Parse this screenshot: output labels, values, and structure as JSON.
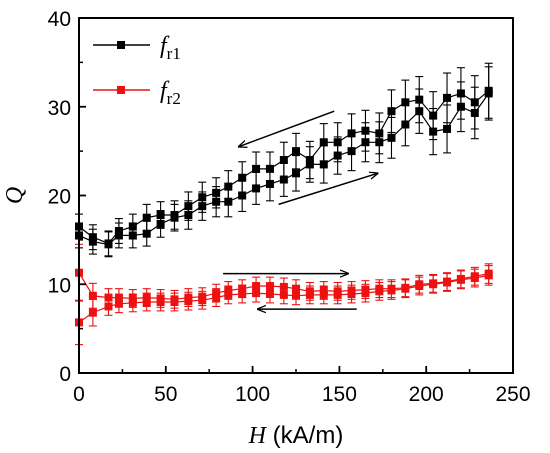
{
  "chart_data": {
    "type": "scatter",
    "xlabel_var": "H",
    "xlabel_unit": " (kA/m)",
    "ylabel": "Q",
    "xlim": [
      0,
      250
    ],
    "ylim": [
      0,
      40
    ],
    "xticks": [
      0,
      50,
      100,
      150,
      200,
      250
    ],
    "yticks": [
      0,
      10,
      20,
      30,
      40
    ],
    "legend_position": "top-left",
    "series": [
      {
        "name_main": "f",
        "name_sub": "r1",
        "color": "#000000",
        "marker": "square",
        "branches": [
          {
            "direction": "increasing",
            "x": [
              0,
              8,
              17,
              23,
              31,
              39,
              47,
              55,
              63,
              71,
              79,
              86,
              94,
              102,
              110,
              118,
              125,
              133,
              141,
              149,
              157,
              165,
              173,
              180,
              188,
              196,
              204,
              212,
              220,
              228,
              236
            ],
            "y": [
              15.5,
              14.8,
              14.5,
              15.5,
              15.5,
              15.7,
              16.8,
              17.5,
              17.8,
              18.8,
              19.3,
              19.3,
              20.0,
              20.8,
              21.3,
              21.8,
              22.5,
              23.5,
              23.5,
              24.5,
              25.0,
              26.0,
              26.0,
              26.5,
              28.0,
              29.5,
              27.2,
              27.5,
              30.0,
              29.3,
              31.5
            ],
            "err": [
              1.4,
              1.4,
              1.4,
              1.4,
              1.4,
              1.4,
              1.5,
              1.5,
              1.6,
              1.6,
              1.7,
              1.7,
              1.8,
              1.8,
              1.9,
              1.9,
              2.0,
              2.0,
              2.1,
              2.1,
              2.2,
              2.2,
              2.3,
              2.3,
              2.4,
              2.5,
              2.6,
              2.7,
              2.8,
              2.9,
              3.0
            ]
          },
          {
            "direction": "decreasing",
            "x": [
              0,
              8,
              17,
              23,
              31,
              39,
              47,
              55,
              63,
              71,
              79,
              86,
              94,
              102,
              110,
              118,
              125,
              133,
              141,
              149,
              157,
              165,
              173,
              180,
              188,
              196,
              204,
              212,
              220,
              228,
              236
            ],
            "y": [
              16.5,
              15.3,
              14.6,
              16.0,
              16.5,
              17.5,
              17.8,
              17.8,
              18.8,
              19.8,
              20.3,
              21.0,
              22.0,
              23.0,
              23.0,
              24.0,
              25.0,
              24.0,
              26.0,
              26.0,
              27.0,
              27.3,
              27.0,
              29.5,
              30.5,
              30.8,
              29.0,
              31.0,
              31.5,
              30.5,
              31.8
            ],
            "err": [
              1.4,
              1.4,
              1.4,
              1.4,
              1.4,
              1.5,
              1.5,
              1.6,
              1.6,
              1.7,
              1.7,
              1.8,
              1.8,
              1.9,
              1.9,
              2.0,
              2.0,
              2.1,
              2.1,
              2.2,
              2.2,
              2.3,
              2.3,
              2.4,
              2.5,
              2.6,
              2.7,
              2.8,
              2.9,
              3.0,
              3.1
            ]
          }
        ]
      },
      {
        "name_main": "f",
        "name_sub": "r2",
        "color": "#ee1111",
        "marker": "square",
        "branches": [
          {
            "direction": "increasing",
            "x": [
              0,
              8,
              17,
              23,
              31,
              39,
              47,
              55,
              63,
              71,
              79,
              86,
              94,
              102,
              110,
              118,
              125,
              133,
              141,
              149,
              157,
              165,
              173,
              180,
              188,
              196,
              204,
              212,
              220,
              228,
              236
            ],
            "y": [
              5.7,
              6.8,
              7.5,
              7.8,
              7.9,
              8.0,
              8.0,
              8.0,
              8.1,
              8.2,
              8.5,
              8.8,
              8.9,
              9.0,
              8.9,
              8.8,
              8.7,
              8.8,
              8.8,
              8.8,
              8.9,
              9.0,
              9.2,
              9.3,
              9.5,
              9.8,
              10.0,
              10.2,
              10.5,
              10.7,
              11.0
            ],
            "err": [
              2.5,
              1.5,
              1.0,
              1.0,
              1.0,
              1.0,
              1.0,
              1.0,
              1.0,
              1.0,
              1.0,
              1.0,
              1.0,
              1.0,
              1.0,
              1.0,
              1.0,
              1.0,
              1.0,
              1.0,
              1.0,
              1.0,
              1.0,
              1.0,
              1.0,
              1.0,
              1.0,
              1.0,
              1.0,
              1.0,
              1.1
            ]
          },
          {
            "direction": "decreasing",
            "x": [
              0,
              8,
              17,
              23,
              31,
              39,
              47,
              55,
              63,
              71,
              79,
              86,
              94,
              102,
              110,
              118,
              125,
              133,
              141,
              149,
              157,
              165,
              173,
              180,
              188,
              196,
              204,
              212,
              220,
              228,
              236
            ],
            "y": [
              11.3,
              8.7,
              8.5,
              8.5,
              8.4,
              8.5,
              8.4,
              8.3,
              8.5,
              8.6,
              9.0,
              9.3,
              9.5,
              9.8,
              9.8,
              9.7,
              9.5,
              9.2,
              9.3,
              9.2,
              9.3,
              9.4,
              9.5,
              9.5,
              9.6,
              10.0,
              10.1,
              10.3,
              10.6,
              10.9,
              11.2
            ],
            "err": [
              3.2,
              1.4,
              1.0,
              1.0,
              1.0,
              1.0,
              1.0,
              1.0,
              1.0,
              1.0,
              1.0,
              1.0,
              1.0,
              1.0,
              1.0,
              1.0,
              1.0,
              1.0,
              1.0,
              1.0,
              1.0,
              1.0,
              1.0,
              1.0,
              1.0,
              1.0,
              1.0,
              1.0,
              1.0,
              1.0,
              1.1
            ]
          }
        ]
      }
    ],
    "annotations": [
      {
        "type": "arrow",
        "direction": "left",
        "from": [
          147,
          29.5
        ],
        "to": [
          92,
          25.5
        ],
        "color": "#000000"
      },
      {
        "type": "arrow",
        "direction": "right",
        "from": [
          115,
          19.0
        ],
        "to": [
          172,
          22.5
        ],
        "color": "#000000"
      },
      {
        "type": "arrow",
        "direction": "right",
        "from": [
          83,
          11.2
        ],
        "to": [
          155,
          11.2
        ],
        "color": "#000000"
      },
      {
        "type": "arrow",
        "direction": "left",
        "from": [
          160,
          7.2
        ],
        "to": [
          103,
          7.2
        ],
        "color": "#000000"
      }
    ]
  }
}
